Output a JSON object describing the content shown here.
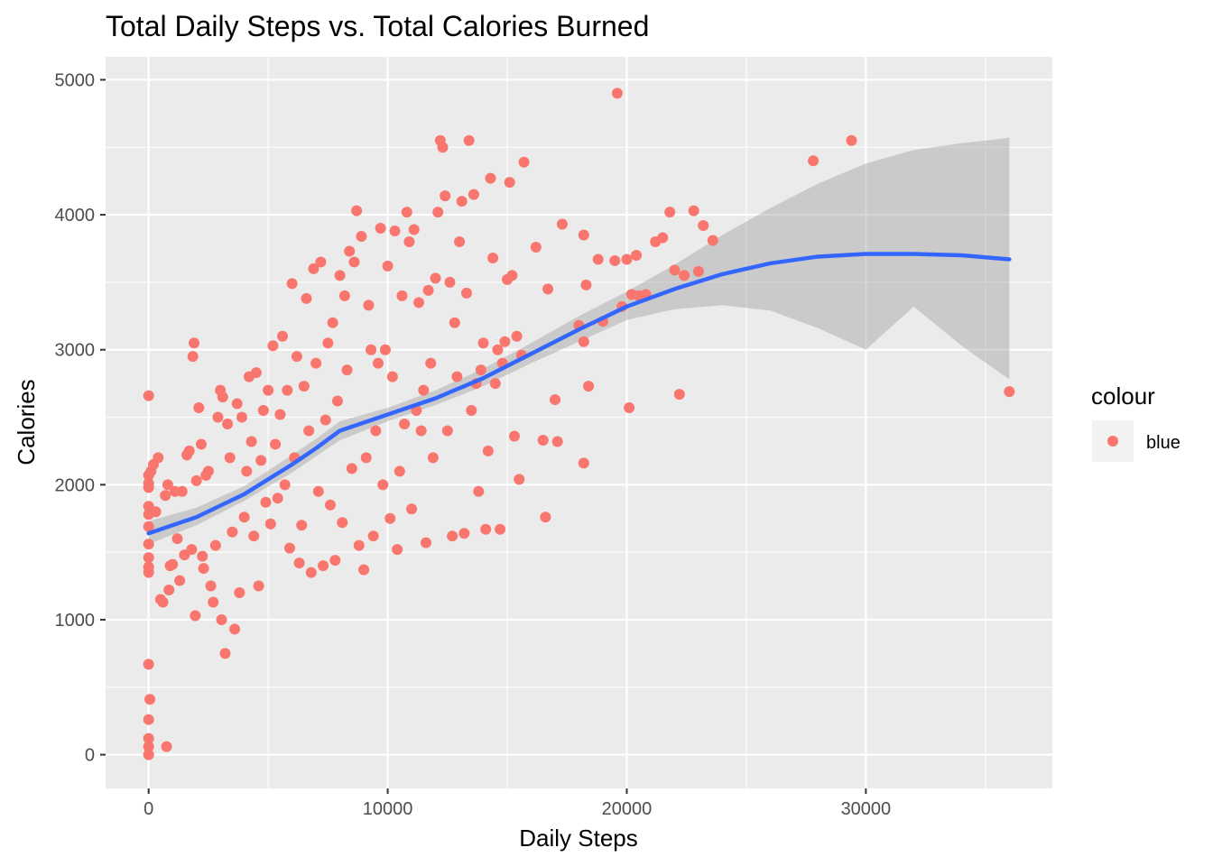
{
  "chart_data": {
    "type": "scatter",
    "title": "Total Daily Steps vs. Total Calories Burned",
    "xlabel": "Daily Steps",
    "ylabel": "Calories",
    "xlim": [
      -1800,
      37800
    ],
    "ylim": [
      -250,
      5170
    ],
    "x_ticks": [
      0,
      10000,
      20000,
      30000
    ],
    "x_tick_labels": [
      "0",
      "10000",
      "20000",
      "30000"
    ],
    "y_ticks": [
      0,
      1000,
      2000,
      3000,
      4000,
      5000
    ],
    "y_tick_labels": [
      "0",
      "1000",
      "2000",
      "3000",
      "4000",
      "5000"
    ],
    "grid": true,
    "legend": {
      "title": "colour",
      "position": "right",
      "entries": [
        {
          "label": "blue",
          "color": "#F8766D"
        }
      ]
    },
    "colors": {
      "points": "#F8766D",
      "smooth_line": "#3366FF",
      "confidence_band": "#999999",
      "panel_background": "#EBEBEB",
      "grid": "#FFFFFF"
    },
    "series": [
      {
        "name": "blue",
        "type": "scatter",
        "points": [
          [
            0,
            2660
          ],
          [
            0,
            2070
          ],
          [
            0,
            2010
          ],
          [
            0,
            1980
          ],
          [
            0,
            1840
          ],
          [
            0,
            1780
          ],
          [
            0,
            1690
          ],
          [
            0,
            1560
          ],
          [
            0,
            1460
          ],
          [
            0,
            1390
          ],
          [
            0,
            1350
          ],
          [
            0,
            670
          ],
          [
            50,
            410
          ],
          [
            0,
            260
          ],
          [
            0,
            120
          ],
          [
            0,
            60
          ],
          [
            0,
            0
          ],
          [
            750,
            60
          ],
          [
            100,
            2100
          ],
          [
            200,
            2150
          ],
          [
            300,
            1800
          ],
          [
            400,
            2200
          ],
          [
            500,
            1150
          ],
          [
            600,
            1130
          ],
          [
            700,
            1920
          ],
          [
            800,
            2000
          ],
          [
            850,
            1220
          ],
          [
            900,
            1400
          ],
          [
            1000,
            1410
          ],
          [
            1100,
            1950
          ],
          [
            1200,
            1600
          ],
          [
            1300,
            1290
          ],
          [
            1400,
            1950
          ],
          [
            1500,
            1480
          ],
          [
            1600,
            2220
          ],
          [
            1700,
            2250
          ],
          [
            1800,
            1520
          ],
          [
            1850,
            2950
          ],
          [
            1900,
            3050
          ],
          [
            1950,
            1030
          ],
          [
            2000,
            2030
          ],
          [
            2100,
            2570
          ],
          [
            2200,
            2300
          ],
          [
            2250,
            1470
          ],
          [
            2300,
            1380
          ],
          [
            2400,
            2070
          ],
          [
            2500,
            2100
          ],
          [
            2600,
            1250
          ],
          [
            2700,
            1130
          ],
          [
            2800,
            1550
          ],
          [
            2900,
            2500
          ],
          [
            3000,
            2700
          ],
          [
            3050,
            1000
          ],
          [
            3100,
            2650
          ],
          [
            3200,
            750
          ],
          [
            3300,
            2450
          ],
          [
            3400,
            2200
          ],
          [
            3500,
            1650
          ],
          [
            3600,
            930
          ],
          [
            3700,
            2600
          ],
          [
            3800,
            1200
          ],
          [
            3900,
            2500
          ],
          [
            4000,
            1760
          ],
          [
            4100,
            2100
          ],
          [
            4200,
            2800
          ],
          [
            4300,
            2320
          ],
          [
            4400,
            1620
          ],
          [
            4500,
            2830
          ],
          [
            4600,
            1250
          ],
          [
            4700,
            2180
          ],
          [
            4800,
            2550
          ],
          [
            4900,
            1870
          ],
          [
            5000,
            2700
          ],
          [
            5100,
            1710
          ],
          [
            5200,
            3030
          ],
          [
            5300,
            2300
          ],
          [
            5400,
            1900
          ],
          [
            5500,
            2520
          ],
          [
            5600,
            3100
          ],
          [
            5700,
            2000
          ],
          [
            5800,
            2700
          ],
          [
            5900,
            1530
          ],
          [
            6000,
            3490
          ],
          [
            6100,
            2200
          ],
          [
            6200,
            2950
          ],
          [
            6300,
            1420
          ],
          [
            6400,
            1700
          ],
          [
            6500,
            2730
          ],
          [
            6600,
            3380
          ],
          [
            6700,
            2400
          ],
          [
            6800,
            1350
          ],
          [
            6900,
            3600
          ],
          [
            7000,
            2900
          ],
          [
            7100,
            1950
          ],
          [
            7200,
            3650
          ],
          [
            7300,
            1400
          ],
          [
            7400,
            2480
          ],
          [
            7500,
            3050
          ],
          [
            7600,
            1850
          ],
          [
            7700,
            3200
          ],
          [
            7800,
            1440
          ],
          [
            7900,
            2620
          ],
          [
            8000,
            3550
          ],
          [
            8100,
            1720
          ],
          [
            8200,
            3400
          ],
          [
            8300,
            2850
          ],
          [
            8400,
            3730
          ],
          [
            8500,
            2120
          ],
          [
            8600,
            3650
          ],
          [
            8700,
            4030
          ],
          [
            8800,
            1550
          ],
          [
            8900,
            3840
          ],
          [
            9000,
            1370
          ],
          [
            9100,
            2200
          ],
          [
            9200,
            3330
          ],
          [
            9300,
            3000
          ],
          [
            9400,
            1620
          ],
          [
            9500,
            2400
          ],
          [
            9600,
            2900
          ],
          [
            9700,
            3900
          ],
          [
            9800,
            2000
          ],
          [
            9900,
            3000
          ],
          [
            10000,
            3620
          ],
          [
            10100,
            1750
          ],
          [
            10200,
            2800
          ],
          [
            10300,
            3880
          ],
          [
            10400,
            1520
          ],
          [
            10500,
            2100
          ],
          [
            10600,
            3400
          ],
          [
            10700,
            2450
          ],
          [
            10800,
            4020
          ],
          [
            10900,
            3800
          ],
          [
            11000,
            1820
          ],
          [
            11100,
            3890
          ],
          [
            11200,
            2550
          ],
          [
            11300,
            3350
          ],
          [
            11400,
            2400
          ],
          [
            11500,
            2700
          ],
          [
            11600,
            1570
          ],
          [
            11700,
            3440
          ],
          [
            11800,
            2900
          ],
          [
            11900,
            2200
          ],
          [
            12000,
            3530
          ],
          [
            12100,
            4020
          ],
          [
            12200,
            4550
          ],
          [
            12300,
            4500
          ],
          [
            12400,
            4140
          ],
          [
            12500,
            2400
          ],
          [
            12600,
            3500
          ],
          [
            12700,
            1620
          ],
          [
            12800,
            3200
          ],
          [
            12900,
            2800
          ],
          [
            13000,
            3800
          ],
          [
            13100,
            4100
          ],
          [
            13200,
            1640
          ],
          [
            13300,
            3420
          ],
          [
            13400,
            4550
          ],
          [
            13500,
            2550
          ],
          [
            13600,
            4150
          ],
          [
            13700,
            2750
          ],
          [
            13800,
            1950
          ],
          [
            13900,
            2850
          ],
          [
            14000,
            3050
          ],
          [
            14100,
            1670
          ],
          [
            14200,
            2250
          ],
          [
            14300,
            4270
          ],
          [
            14400,
            3680
          ],
          [
            14500,
            2750
          ],
          [
            14600,
            3000
          ],
          [
            14700,
            1670
          ],
          [
            14800,
            2900
          ],
          [
            14900,
            3060
          ],
          [
            15000,
            3520
          ],
          [
            15100,
            4240
          ],
          [
            15200,
            3550
          ],
          [
            15300,
            2360
          ],
          [
            15400,
            3100
          ],
          [
            15500,
            2040
          ],
          [
            15600,
            2960
          ],
          [
            15700,
            4390
          ],
          [
            16200,
            3760
          ],
          [
            16500,
            2330
          ],
          [
            16600,
            1760
          ],
          [
            16700,
            3450
          ],
          [
            17000,
            2630
          ],
          [
            17100,
            2320
          ],
          [
            17300,
            3930
          ],
          [
            18000,
            3180
          ],
          [
            18200,
            3060
          ],
          [
            18200,
            2160
          ],
          [
            18200,
            3850
          ],
          [
            18300,
            3480
          ],
          [
            18400,
            2730
          ],
          [
            18800,
            3670
          ],
          [
            19000,
            3210
          ],
          [
            19500,
            3660
          ],
          [
            19600,
            4900
          ],
          [
            19800,
            3320
          ],
          [
            20000,
            3670
          ],
          [
            20100,
            2570
          ],
          [
            20200,
            3410
          ],
          [
            20400,
            3700
          ],
          [
            20500,
            3400
          ],
          [
            20800,
            3410
          ],
          [
            21200,
            3800
          ],
          [
            21500,
            3830
          ],
          [
            21800,
            4020
          ],
          [
            22000,
            3590
          ],
          [
            22200,
            2670
          ],
          [
            22400,
            3550
          ],
          [
            22800,
            4030
          ],
          [
            23000,
            3580
          ],
          [
            23200,
            3920
          ],
          [
            23600,
            3810
          ],
          [
            27800,
            4400
          ],
          [
            29400,
            4550
          ],
          [
            36000,
            2690
          ]
        ]
      }
    ],
    "smooth": {
      "label": "loess fit",
      "x": [
        0,
        2000,
        4000,
        6000,
        7000,
        8000,
        10000,
        12000,
        14000,
        16000,
        18000,
        20000,
        22000,
        24000,
        26000,
        28000,
        30000,
        32000,
        34000,
        36000
      ],
      "y": [
        1640,
        1760,
        1930,
        2150,
        2270,
        2400,
        2520,
        2640,
        2790,
        2970,
        3150,
        3320,
        3450,
        3560,
        3640,
        3690,
        3710,
        3710,
        3700,
        3670
      ],
      "lower": [
        1560,
        1700,
        1880,
        2090,
        2210,
        2330,
        2470,
        2590,
        2730,
        2900,
        3060,
        3220,
        3300,
        3330,
        3290,
        3160,
        3000,
        3320,
        3030,
        2780
      ],
      "upper": [
        1730,
        1830,
        1990,
        2220,
        2340,
        2470,
        2570,
        2700,
        2860,
        3050,
        3250,
        3430,
        3630,
        3850,
        4050,
        4230,
        4380,
        4480,
        4530,
        4570
      ]
    }
  }
}
